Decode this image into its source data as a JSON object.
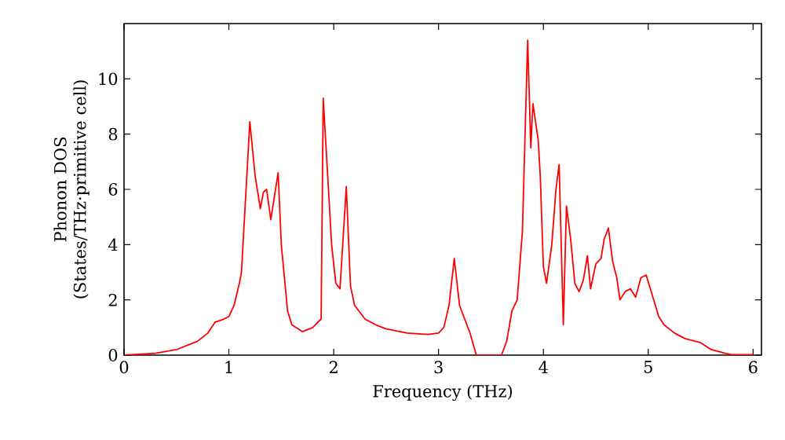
{
  "chart_data": {
    "type": "line",
    "xlabel": "Frequency (THz)",
    "ylabel": "Phonon DOS (States/THz·primitive cell)",
    "xlim": [
      0,
      6.08
    ],
    "ylim": [
      0,
      12
    ],
    "xticks": [
      0,
      1,
      2,
      3,
      4,
      5,
      6
    ],
    "yticks": [
      0,
      2,
      4,
      6,
      8,
      10
    ],
    "marker": "none",
    "line_style": "solid",
    "series": [
      {
        "color": "#ff0000",
        "x": [
          0,
          0.3,
          0.5,
          0.7,
          0.8,
          0.87,
          0.95,
          1.0,
          1.05,
          1.1,
          1.12,
          1.2,
          1.25,
          1.3,
          1.33,
          1.36,
          1.4,
          1.47,
          1.5,
          1.56,
          1.6,
          1.7,
          1.8,
          1.85,
          1.88,
          1.9,
          1.98,
          2.02,
          2.06,
          2.12,
          2.16,
          2.2,
          2.3,
          2.4,
          2.5,
          2.7,
          2.9,
          3.0,
          3.05,
          3.1,
          3.15,
          3.2,
          3.25,
          3.3,
          3.36,
          3.6,
          3.65,
          3.7,
          3.75,
          3.8,
          3.85,
          3.88,
          3.9,
          3.95,
          3.97,
          4.0,
          4.03,
          4.08,
          4.12,
          4.15,
          4.19,
          4.22,
          4.26,
          4.3,
          4.34,
          4.38,
          4.42,
          4.45,
          4.5,
          4.55,
          4.58,
          4.62,
          4.66,
          4.7,
          4.73,
          4.78,
          4.83,
          4.88,
          4.93,
          4.98,
          5.02,
          5.06,
          5.1,
          5.15,
          5.25,
          5.35,
          5.5,
          5.6,
          5.7,
          5.75,
          5.8,
          6.0
        ],
        "values": [
          0,
          0.07,
          0.2,
          0.5,
          0.8,
          1.2,
          1.3,
          1.4,
          1.8,
          2.6,
          3.0,
          8.45,
          6.5,
          5.3,
          5.9,
          6.0,
          4.9,
          6.6,
          4.0,
          1.6,
          1.1,
          0.85,
          1.0,
          1.2,
          1.3,
          9.3,
          4.0,
          2.6,
          2.4,
          6.1,
          2.5,
          1.8,
          1.3,
          1.1,
          0.95,
          0.8,
          0.75,
          0.8,
          1.0,
          1.8,
          3.5,
          1.8,
          1.3,
          0.8,
          0,
          0,
          0.5,
          1.6,
          2.0,
          4.5,
          11.4,
          7.5,
          9.1,
          7.8,
          6.5,
          3.2,
          2.6,
          4.0,
          6.0,
          6.9,
          1.1,
          5.4,
          4.2,
          2.6,
          2.3,
          2.7,
          3.6,
          2.4,
          3.3,
          3.5,
          4.2,
          4.6,
          3.4,
          2.8,
          2.0,
          2.3,
          2.4,
          2.1,
          2.8,
          2.9,
          2.4,
          1.9,
          1.4,
          1.1,
          0.8,
          0.6,
          0.45,
          0.2,
          0.1,
          0.05,
          0.02,
          0.02
        ]
      }
    ]
  }
}
